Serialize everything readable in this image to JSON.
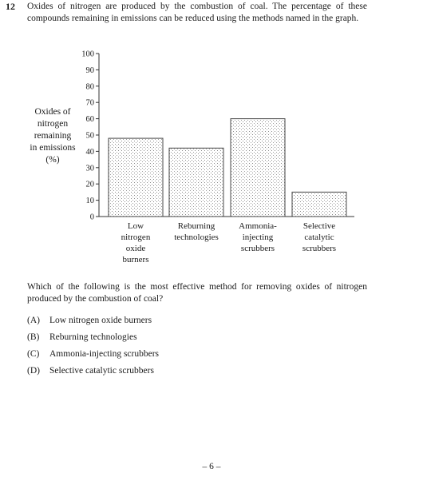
{
  "question": {
    "number": "12",
    "stem": "Oxides of nitrogen are produced by the combustion of coal. The percentage of these compounds remaining in emissions can be reduced using the methods named in the graph.",
    "prompt": "Which of the following is the most effective method for removing oxides of nitrogen produced by the combustion of coal?",
    "options": [
      {
        "letter": "(A)",
        "text": "Low nitrogen oxide burners"
      },
      {
        "letter": "(B)",
        "text": "Reburning technologies"
      },
      {
        "letter": "(C)",
        "text": "Ammonia-injecting scrubbers"
      },
      {
        "letter": "(D)",
        "text": "Selective catalytic scrubbers"
      }
    ]
  },
  "chart_data": {
    "type": "bar",
    "title": "",
    "ylabel_lines": [
      "Oxides of",
      "nitrogen",
      "remaining",
      "in emissions",
      "(%)"
    ],
    "xlabel": "",
    "ylim": [
      0,
      100
    ],
    "yticks": [
      0,
      10,
      20,
      30,
      40,
      50,
      60,
      70,
      80,
      90,
      100
    ],
    "grid": false,
    "categories": [
      [
        "Low",
        "nitrogen",
        "oxide",
        "burners"
      ],
      [
        "Reburning",
        "technologies"
      ],
      [
        "Ammonia-",
        "injecting",
        "scrubbers"
      ],
      [
        "Selective",
        "catalytic",
        "scrubbers"
      ]
    ],
    "values": [
      48,
      42,
      60,
      15
    ]
  },
  "footer": {
    "page": "– 6 –"
  }
}
